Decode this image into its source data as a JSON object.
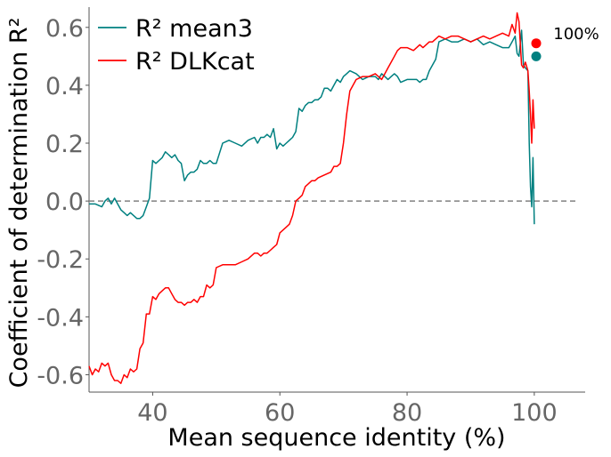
{
  "chart_data": {
    "type": "line",
    "xlabel": "Mean sequence identity (%)",
    "ylabel": "Coefficient of determination R²",
    "xlim": [
      30,
      108
    ],
    "ylim": [
      -0.66,
      0.67
    ],
    "x_ticks": [
      40,
      60,
      80,
      100
    ],
    "y_ticks": [
      -0.6,
      -0.4,
      -0.2,
      0.0,
      0.2,
      0.4,
      0.6
    ],
    "x_tick_labels": [
      "40",
      "60",
      "80",
      "100"
    ],
    "y_tick_labels": [
      "-0.6",
      "-0.4",
      "-0.2",
      "0.0",
      "0.2",
      "0.4",
      "0.6"
    ],
    "reference_line": {
      "y": 0,
      "style": "dashed",
      "color": "#808080"
    },
    "legend_position": "top-left",
    "grid": false,
    "annotation": {
      "text": "100%",
      "x": 103,
      "y": 0.56
    },
    "series": [
      {
        "name": "R² mean3",
        "color": "#008080",
        "x": [
          30,
          31,
          32,
          32.5,
          33,
          33.5,
          34,
          34.5,
          35,
          35.5,
          36,
          36.5,
          37,
          37.5,
          38,
          38.5,
          39,
          39.5,
          40,
          40.5,
          41,
          41.5,
          42,
          42.5,
          43,
          43.5,
          44,
          44.5,
          45,
          45.5,
          46,
          46.5,
          47,
          47.5,
          48,
          48.5,
          49,
          49.5,
          50,
          51,
          52,
          53,
          54,
          55,
          56,
          56.5,
          57,
          57.5,
          58,
          58.5,
          59,
          59.5,
          60,
          60.5,
          61,
          61.5,
          62,
          62.5,
          63,
          63.5,
          64,
          64.5,
          65,
          65.5,
          66,
          66.5,
          67,
          67.5,
          68,
          68.5,
          69,
          69.5,
          70,
          70.5,
          71,
          72,
          73,
          74,
          75,
          75.5,
          76,
          76.5,
          77,
          77.5,
          78,
          78.5,
          79,
          80,
          81,
          81.5,
          82,
          82.5,
          83,
          83.5,
          84,
          84.5,
          85,
          86,
          87,
          88,
          89,
          90,
          91,
          92,
          93,
          94,
          95,
          96,
          96.5,
          97,
          97.3,
          97.6,
          98,
          98.3,
          98.6,
          99,
          99.2,
          99.4,
          99.6,
          99.8,
          100
        ],
        "values": [
          -0.01,
          -0.01,
          -0.02,
          0.0,
          0.01,
          -0.01,
          0.01,
          -0.01,
          -0.03,
          -0.04,
          -0.05,
          -0.04,
          -0.05,
          -0.06,
          -0.06,
          -0.05,
          -0.02,
          0.01,
          0.14,
          0.13,
          0.14,
          0.15,
          0.17,
          0.16,
          0.15,
          0.16,
          0.14,
          0.13,
          0.07,
          0.09,
          0.1,
          0.1,
          0.11,
          0.14,
          0.13,
          0.13,
          0.14,
          0.13,
          0.13,
          0.2,
          0.21,
          0.2,
          0.19,
          0.21,
          0.22,
          0.2,
          0.22,
          0.22,
          0.23,
          0.22,
          0.25,
          0.18,
          0.2,
          0.19,
          0.2,
          0.21,
          0.22,
          0.24,
          0.32,
          0.31,
          0.33,
          0.34,
          0.34,
          0.35,
          0.35,
          0.36,
          0.39,
          0.39,
          0.38,
          0.4,
          0.42,
          0.41,
          0.43,
          0.44,
          0.45,
          0.44,
          0.42,
          0.43,
          0.43,
          0.42,
          0.44,
          0.43,
          0.42,
          0.43,
          0.44,
          0.43,
          0.41,
          0.42,
          0.42,
          0.42,
          0.41,
          0.42,
          0.42,
          0.45,
          0.47,
          0.49,
          0.55,
          0.56,
          0.55,
          0.55,
          0.56,
          0.55,
          0.56,
          0.54,
          0.55,
          0.54,
          0.53,
          0.53,
          0.55,
          0.57,
          0.51,
          0.5,
          0.59,
          0.47,
          0.46,
          0.45,
          0.2,
          0.05,
          -0.02,
          0.15,
          -0.08
        ]
      },
      {
        "name": "R² DLKcat",
        "color": "#ff0000",
        "x": [
          30,
          30.5,
          31,
          31.5,
          32,
          32.5,
          33,
          33.5,
          34,
          34.5,
          35,
          35.5,
          36,
          36.5,
          37,
          37.5,
          38,
          38.5,
          39,
          39.5,
          40,
          40.5,
          41,
          41.5,
          42,
          42.5,
          43,
          43.5,
          44,
          44.5,
          45,
          45.5,
          46,
          46.5,
          47,
          47.5,
          48,
          48.5,
          49,
          49.5,
          50,
          51,
          52,
          53,
          54,
          55,
          56,
          56.5,
          57,
          57.5,
          58,
          58.5,
          59,
          59.5,
          60,
          60.5,
          61,
          61.5,
          62,
          62.5,
          63,
          63.5,
          64,
          64.5,
          65,
          65.5,
          66,
          67,
          68,
          68.5,
          69,
          69.5,
          70,
          70.5,
          71,
          72,
          73,
          74,
          75,
          75.5,
          76,
          76.5,
          77,
          77.5,
          78,
          78.5,
          79,
          80,
          81,
          81.5,
          82,
          82.5,
          83,
          83.5,
          84,
          84.5,
          85,
          86,
          87,
          88,
          89,
          90,
          91,
          92,
          93,
          94,
          95,
          96,
          96.5,
          97,
          97.3,
          97.6,
          98,
          98.3,
          98.6,
          99,
          99.2,
          99.4,
          99.6,
          99.8,
          100
        ],
        "values": [
          -0.57,
          -0.6,
          -0.58,
          -0.59,
          -0.56,
          -0.57,
          -0.56,
          -0.6,
          -0.62,
          -0.62,
          -0.63,
          -0.6,
          -0.61,
          -0.58,
          -0.59,
          -0.58,
          -0.51,
          -0.49,
          -0.39,
          -0.39,
          -0.33,
          -0.34,
          -0.32,
          -0.31,
          -0.3,
          -0.3,
          -0.32,
          -0.34,
          -0.35,
          -0.35,
          -0.36,
          -0.35,
          -0.35,
          -0.34,
          -0.35,
          -0.33,
          -0.33,
          -0.29,
          -0.3,
          -0.29,
          -0.23,
          -0.22,
          -0.22,
          -0.22,
          -0.21,
          -0.2,
          -0.18,
          -0.18,
          -0.19,
          -0.18,
          -0.18,
          -0.17,
          -0.16,
          -0.15,
          -0.11,
          -0.1,
          -0.09,
          -0.08,
          -0.05,
          0.0,
          0.01,
          0.02,
          0.05,
          0.06,
          0.07,
          0.07,
          0.08,
          0.09,
          0.1,
          0.12,
          0.12,
          0.13,
          0.2,
          0.3,
          0.38,
          0.42,
          0.43,
          0.43,
          0.44,
          0.43,
          0.42,
          0.44,
          0.46,
          0.48,
          0.5,
          0.52,
          0.53,
          0.53,
          0.52,
          0.53,
          0.54,
          0.53,
          0.54,
          0.55,
          0.55,
          0.56,
          0.57,
          0.56,
          0.57,
          0.57,
          0.56,
          0.55,
          0.56,
          0.57,
          0.56,
          0.57,
          0.58,
          0.57,
          0.61,
          0.58,
          0.65,
          0.62,
          0.47,
          0.46,
          0.48,
          0.45,
          0.38,
          0.3,
          0.2,
          0.35,
          0.25
        ]
      }
    ],
    "end_points": [
      {
        "series": "R² mean3",
        "x": 100.3,
        "y": 0.5,
        "color": "#008080"
      },
      {
        "series": "R² DLKcat",
        "x": 100.3,
        "y": 0.545,
        "color": "#ff0000"
      }
    ]
  }
}
